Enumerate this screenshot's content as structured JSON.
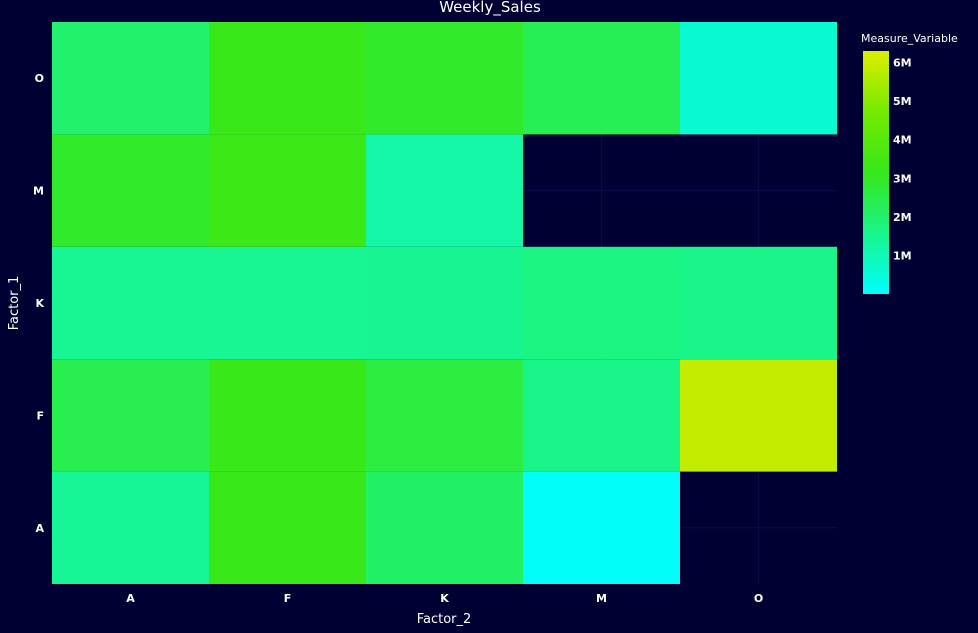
{
  "chart_data": {
    "type": "heatmap",
    "title": "Weekly_Sales",
    "xlabel": "Factor_2",
    "ylabel": "Factor_1",
    "x_categories": [
      "A",
      "F",
      "K",
      "M",
      "O"
    ],
    "y_categories": [
      "A",
      "F",
      "K",
      "M",
      "O"
    ],
    "z": [
      [
        1.4,
        3.2,
        2.1,
        0.1,
        null
      ],
      [
        2.4,
        3.2,
        2.6,
        1.6,
        5.9
      ],
      [
        1.45,
        1.45,
        1.5,
        1.7,
        1.6
      ],
      [
        2.9,
        3.3,
        1.2,
        null,
        null
      ],
      [
        2.0,
        3.2,
        2.9,
        2.3,
        0.6
      ]
    ],
    "colorbar": {
      "title": "Measure_Variable",
      "range": [
        0,
        6.3
      ],
      "ticks": [
        {
          "value": 1,
          "label": "1M"
        },
        {
          "value": 2,
          "label": "2M"
        },
        {
          "value": 3,
          "label": "3M"
        },
        {
          "value": 4,
          "label": "4M"
        },
        {
          "value": 5,
          "label": "5M"
        },
        {
          "value": 6,
          "label": "6M"
        }
      ],
      "colors": [
        "#00ffff",
        "#19f58a",
        "#36e81a",
        "#75ea00",
        "#ddee00"
      ]
    },
    "colors": {
      "background": "#000033",
      "grid": "#0c0c4a",
      "text": "#ffffff"
    }
  }
}
